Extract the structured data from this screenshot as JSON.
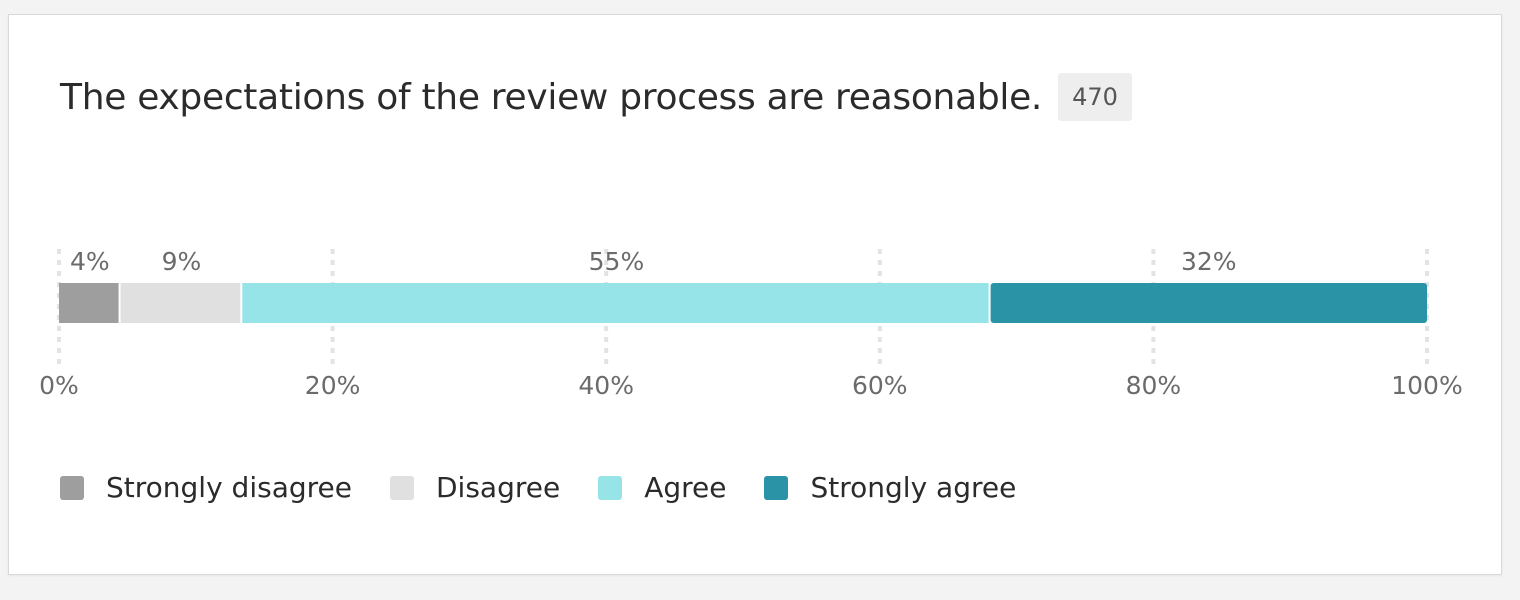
{
  "card": {
    "title": "The expectations of the review process are reasonable.",
    "count": "470"
  },
  "chart_data": {
    "type": "bar",
    "orientation": "horizontal-stacked",
    "xlim": [
      0,
      100
    ],
    "ticks": [
      0,
      20,
      40,
      60,
      80,
      100
    ],
    "tick_labels": [
      "0%",
      "20%",
      "40%",
      "60%",
      "80%",
      "100%"
    ],
    "grid": true,
    "legend_position": "bottom-left",
    "series": [
      {
        "name": "Strongly disagree",
        "value": 4.5,
        "label": "4%",
        "color": "#9e9e9e"
      },
      {
        "name": "Disagree",
        "value": 8.9,
        "label": "9%",
        "color": "#e0e0e0"
      },
      {
        "name": "Agree",
        "value": 54.7,
        "label": "55%",
        "color": "#96e3e8"
      },
      {
        "name": "Strongly agree",
        "value": 31.9,
        "label": "32%",
        "color": "#2a94a6"
      }
    ]
  }
}
